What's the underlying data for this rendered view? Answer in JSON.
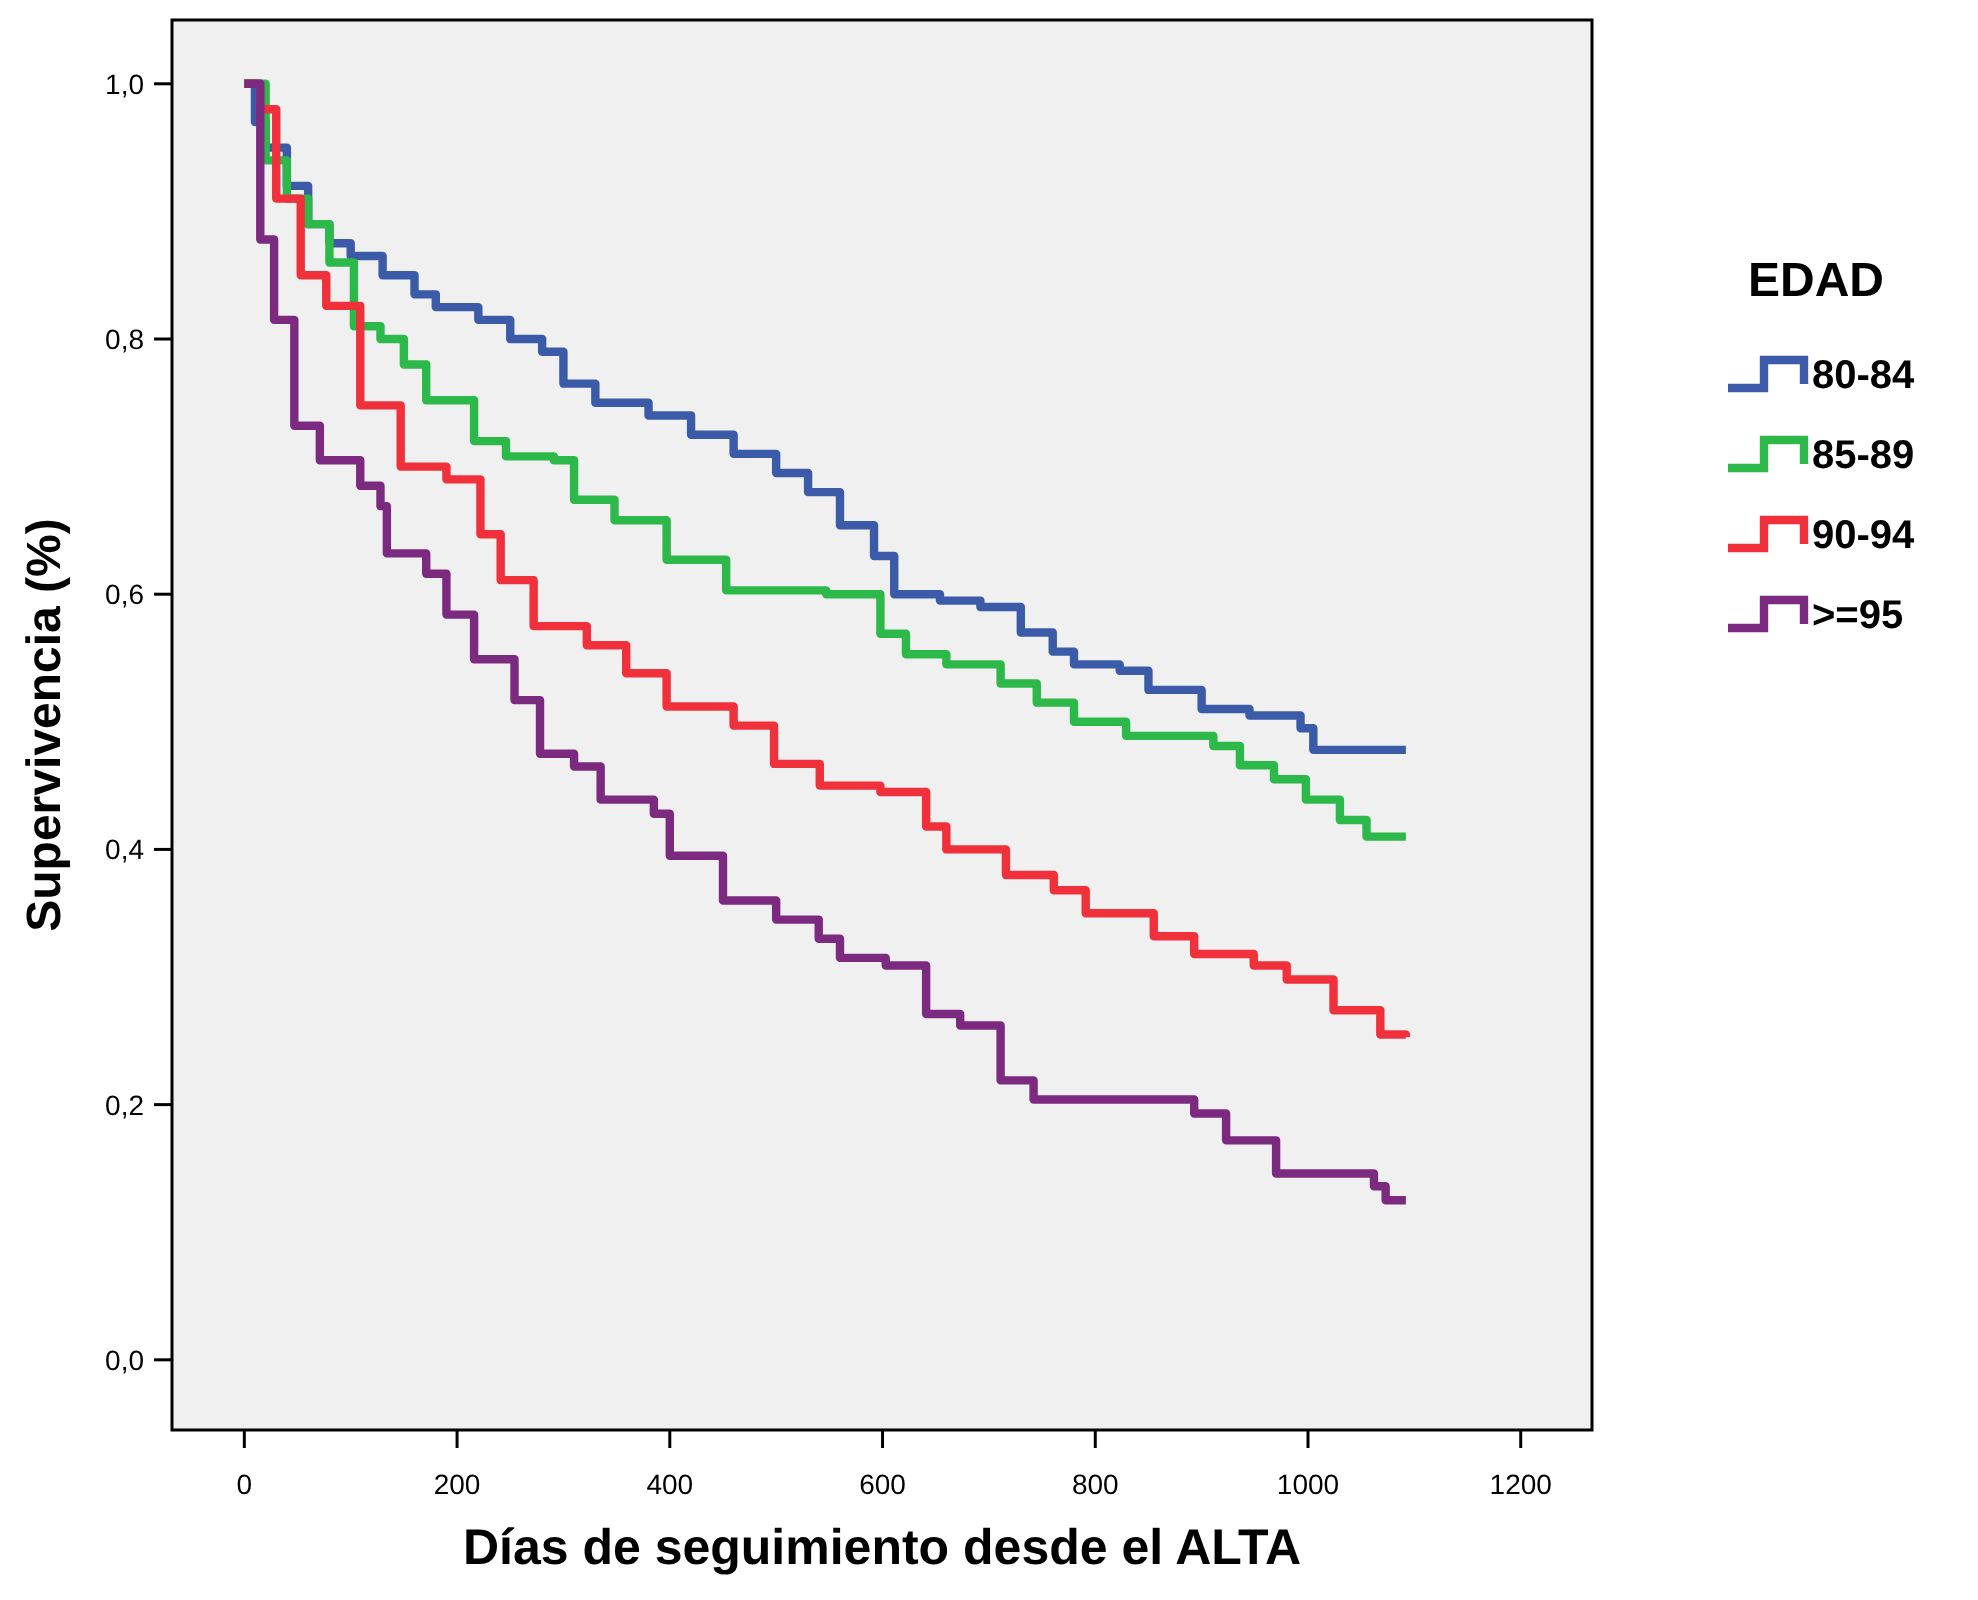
{
  "chart_data": {
    "type": "step",
    "xlabel": "Días de seguimiento desde el ALTA",
    "ylabel": "Supervivencia (%)",
    "legend_title": "EDAD",
    "legend": "right",
    "grid": false,
    "marker": "none",
    "line_style": "solid",
    "xlim": [
      -68,
      1267
    ],
    "ylim": [
      -0.055,
      1.05
    ],
    "xticks": [
      0,
      200,
      400,
      600,
      800,
      1000,
      1200
    ],
    "yticks": [
      {
        "value": 0,
        "label": "0,0"
      },
      {
        "value": 0.2,
        "label": "0,2"
      },
      {
        "value": 0.4,
        "label": "0,4"
      },
      {
        "value": 0.6,
        "label": "0,6"
      },
      {
        "value": 0.8,
        "label": "0,8"
      },
      {
        "value": 1.0,
        "label": "1,0"
      }
    ],
    "series": [
      {
        "name": "80-84",
        "color": "#3b5ba9",
        "x": [
          0,
          10,
          20,
          40,
          60,
          80,
          100,
          130,
          160,
          180,
          220,
          250,
          280,
          300,
          330,
          380,
          420,
          460,
          500,
          530,
          560,
          592,
          611,
          654,
          692,
          730,
          760,
          780,
          823,
          850,
          900,
          945,
          993,
          1005,
          1092
        ],
        "values": [
          1.0,
          0.97,
          0.95,
          0.92,
          0.89,
          0.875,
          0.865,
          0.85,
          0.835,
          0.825,
          0.815,
          0.8,
          0.79,
          0.765,
          0.75,
          0.74,
          0.725,
          0.71,
          0.695,
          0.68,
          0.654,
          0.63,
          0.6,
          0.595,
          0.59,
          0.57,
          0.555,
          0.545,
          0.54,
          0.525,
          0.51,
          0.505,
          0.495,
          0.478,
          0.478
        ]
      },
      {
        "name": "85-89",
        "color": "#2db84a",
        "x": [
          0,
          20,
          40,
          60,
          80,
          103,
          128,
          150,
          171,
          216,
          246,
          291,
          310,
          348,
          397,
          453,
          547,
          598,
          622,
          660,
          711,
          745,
          780,
          829,
          911,
          936,
          968,
          998,
          1030,
          1055,
          1092
        ],
        "values": [
          1.0,
          0.94,
          0.91,
          0.89,
          0.86,
          0.81,
          0.8,
          0.78,
          0.752,
          0.72,
          0.708,
          0.705,
          0.674,
          0.658,
          0.627,
          0.603,
          0.6,
          0.569,
          0.553,
          0.545,
          0.53,
          0.515,
          0.5,
          0.489,
          0.481,
          0.466,
          0.455,
          0.439,
          0.423,
          0.41,
          0.41
        ]
      },
      {
        "name": "90-94",
        "color": "#f0303a",
        "x": [
          0,
          15,
          30,
          53,
          77,
          109,
          147,
          190,
          222,
          241,
          272,
          322,
          359,
          397,
          460,
          498,
          541,
          598,
          641,
          660,
          716,
          761,
          791,
          855,
          893,
          949,
          980,
          1024,
          1068,
          1092
        ],
        "values": [
          1.0,
          0.98,
          0.91,
          0.85,
          0.826,
          0.748,
          0.7,
          0.69,
          0.647,
          0.611,
          0.575,
          0.56,
          0.538,
          0.512,
          0.497,
          0.467,
          0.45,
          0.445,
          0.418,
          0.4,
          0.38,
          0.368,
          0.35,
          0.332,
          0.318,
          0.309,
          0.298,
          0.274,
          0.255,
          0.253
        ]
      },
      {
        "name": ">=95",
        "color": "#7b2a7f",
        "x": [
          0,
          15,
          28,
          47,
          71,
          109,
          128,
          134,
          171,
          190,
          216,
          254,
          278,
          310,
          335,
          385,
          400,
          450,
          500,
          540,
          560,
          603,
          641,
          673,
          711,
          742,
          893,
          923,
          970,
          1062,
          1073,
          1092
        ],
        "values": [
          1.0,
          0.878,
          0.815,
          0.732,
          0.705,
          0.685,
          0.669,
          0.632,
          0.616,
          0.584,
          0.549,
          0.517,
          0.475,
          0.465,
          0.439,
          0.428,
          0.395,
          0.36,
          0.345,
          0.33,
          0.315,
          0.309,
          0.271,
          0.262,
          0.219,
          0.204,
          0.193,
          0.172,
          0.146,
          0.136,
          0.125,
          0.125
        ]
      }
    ]
  }
}
